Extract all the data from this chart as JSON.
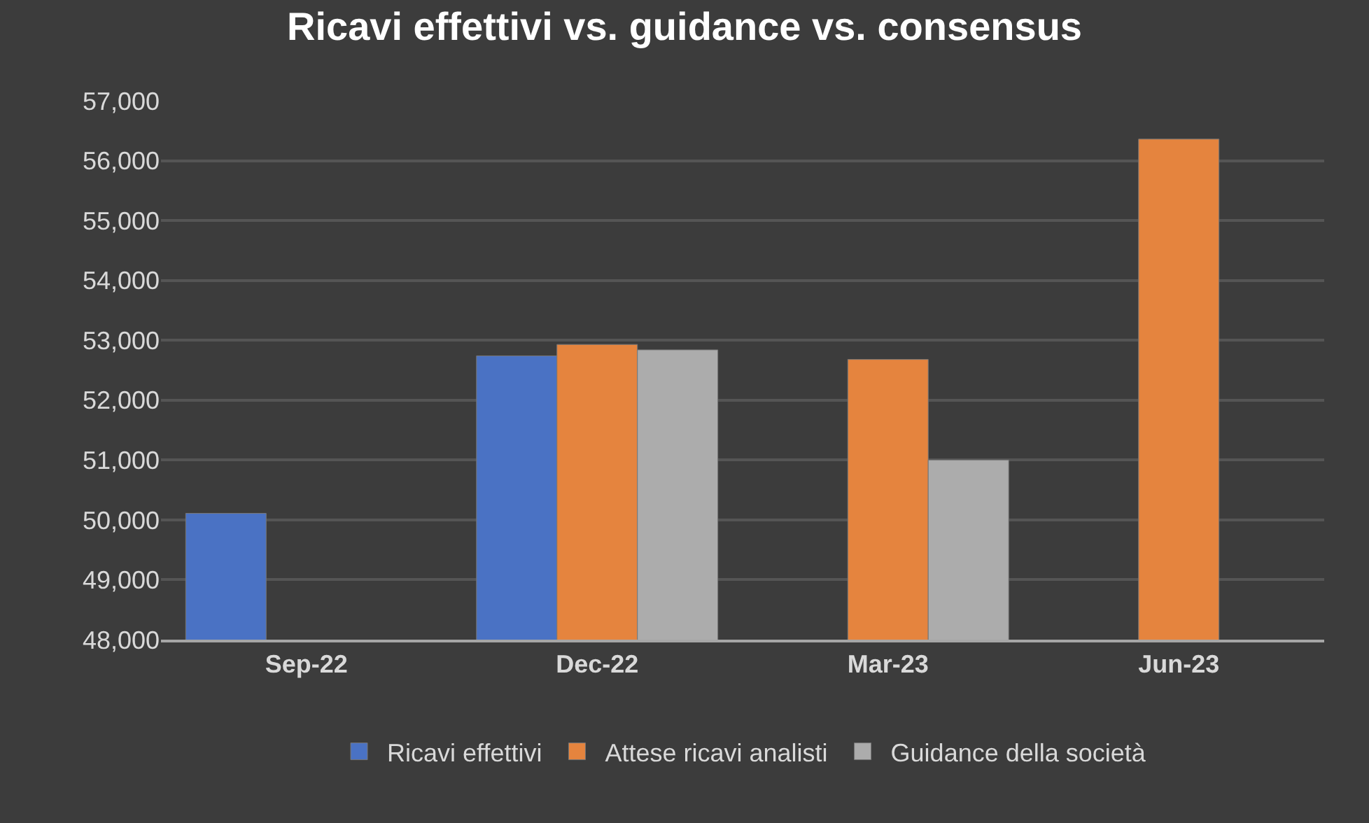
{
  "chart_data": {
    "type": "bar",
    "title": "Ricavi effettivi vs. guidance vs. consensus",
    "categories": [
      "Sep-22",
      "Dec-22",
      "Mar-23",
      "Jun-23"
    ],
    "series": [
      {
        "name": "Ricavi effettivi",
        "color": "#4a72c4",
        "values": [
          50110,
          52740,
          null,
          null
        ]
      },
      {
        "name": "Attese ricavi analisti",
        "color": "#e5843e",
        "values": [
          null,
          52930,
          52680,
          56360
        ]
      },
      {
        "name": "Guidance della società",
        "color": "#acacac",
        "values": [
          null,
          52840,
          51000,
          null
        ]
      }
    ],
    "ylim": [
      48000,
      57000
    ],
    "yticks": [
      {
        "value": 48000,
        "label": "48,000"
      },
      {
        "value": 49000,
        "label": "49,000"
      },
      {
        "value": 50000,
        "label": "50,000"
      },
      {
        "value": 51000,
        "label": "51,000"
      },
      {
        "value": 52000,
        "label": "52,000"
      },
      {
        "value": 53000,
        "label": "53,000"
      },
      {
        "value": 54000,
        "label": "54,000"
      },
      {
        "value": 55000,
        "label": "55,000"
      },
      {
        "value": 56000,
        "label": "56,000"
      },
      {
        "value": 57000,
        "label": "57,000"
      }
    ],
    "grid": "y",
    "legend": "bottom"
  }
}
